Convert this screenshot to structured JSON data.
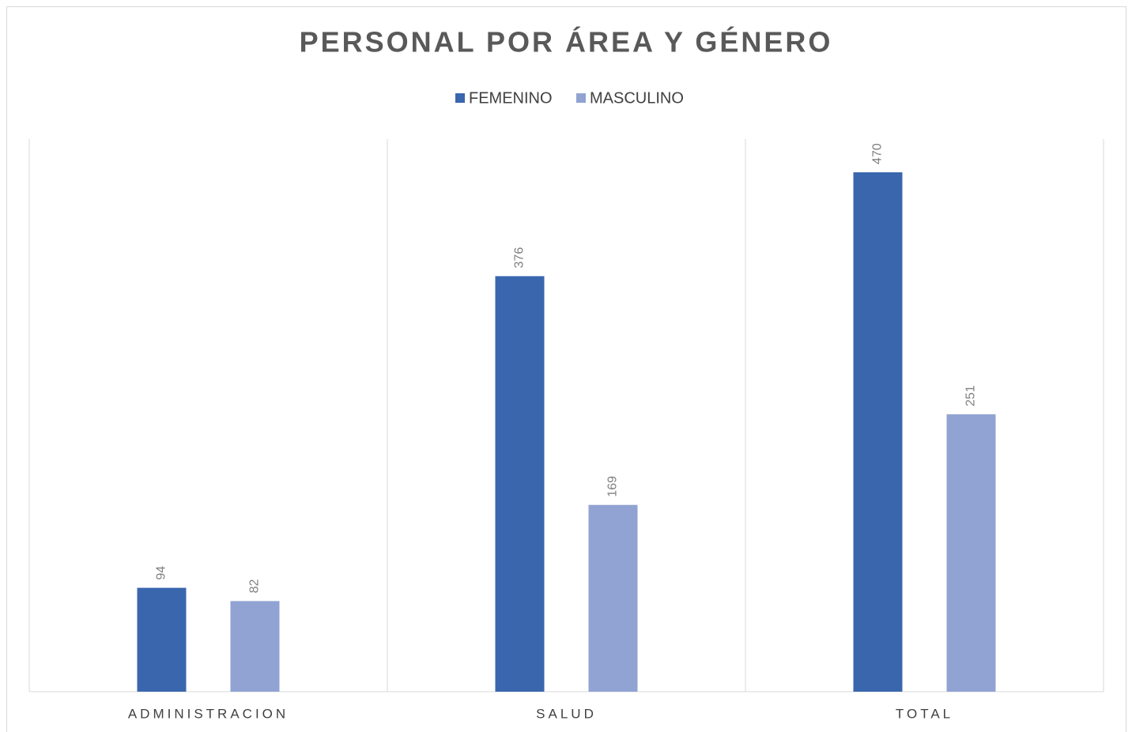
{
  "chart_data": {
    "type": "bar",
    "title": "PERSONAL POR ÁREA Y GÉNERO",
    "categories": [
      "ADMINISTRACION",
      "SALUD",
      "TOTAL"
    ],
    "series": [
      {
        "name": "FEMENINO",
        "color": "#3a66ae",
        "values": [
          94,
          376,
          470
        ]
      },
      {
        "name": "MASCULINO",
        "color": "#91a3d2",
        "values": [
          82,
          169,
          251
        ]
      }
    ],
    "ylim": [
      0,
      500
    ]
  }
}
